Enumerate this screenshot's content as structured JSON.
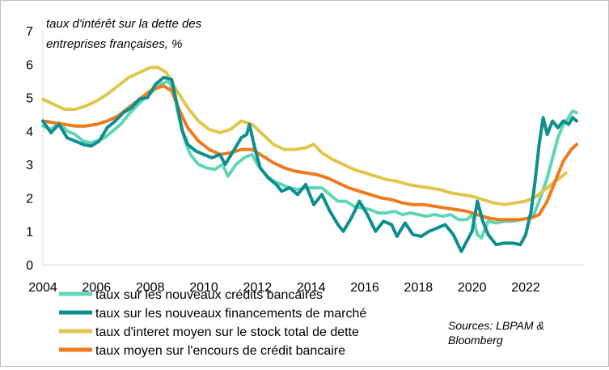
{
  "chart_data": {
    "type": "line",
    "ylabel_lines": [
      "taux d'intérêt sur la dette des",
      "entreprises françaises, %"
    ],
    "xlim": [
      2004,
      2024.2
    ],
    "ylim": [
      0,
      7
    ],
    "x_ticks": [
      2004,
      2006,
      2008,
      2010,
      2012,
      2014,
      2016,
      2018,
      2020,
      2022
    ],
    "y_ticks": [
      0,
      1,
      2,
      3,
      4,
      5,
      6,
      7
    ],
    "grid": false,
    "legend_position": "bottom-left",
    "source_lines": [
      "Sources: LBPAM &",
      "Bloomberg"
    ],
    "series": [
      {
        "name": "taux sur les nouveaux crédits bancaires",
        "color": "#5fd6b6",
        "points": [
          [
            2004.0,
            4.15
          ],
          [
            2004.3,
            4.05
          ],
          [
            2004.6,
            4.25
          ],
          [
            2004.9,
            4.0
          ],
          [
            2005.2,
            3.9
          ],
          [
            2005.5,
            3.7
          ],
          [
            2005.8,
            3.65
          ],
          [
            2006.0,
            3.7
          ],
          [
            2006.3,
            3.8
          ],
          [
            2006.6,
            4.0
          ],
          [
            2006.9,
            4.2
          ],
          [
            2007.2,
            4.5
          ],
          [
            2007.5,
            4.75
          ],
          [
            2007.8,
            5.0
          ],
          [
            2008.1,
            5.2
          ],
          [
            2008.4,
            5.4
          ],
          [
            2008.7,
            5.5
          ],
          [
            2008.9,
            5.1
          ],
          [
            2009.1,
            4.3
          ],
          [
            2009.3,
            3.7
          ],
          [
            2009.5,
            3.3
          ],
          [
            2009.8,
            3.0
          ],
          [
            2010.1,
            2.9
          ],
          [
            2010.4,
            2.85
          ],
          [
            2010.7,
            3.0
          ],
          [
            2010.9,
            2.65
          ],
          [
            2011.2,
            3.0
          ],
          [
            2011.5,
            3.2
          ],
          [
            2011.8,
            3.3
          ],
          [
            2012.0,
            3.0
          ],
          [
            2012.3,
            2.7
          ],
          [
            2012.6,
            2.5
          ],
          [
            2012.9,
            2.4
          ],
          [
            2013.2,
            2.3
          ],
          [
            2013.5,
            2.25
          ],
          [
            2013.8,
            2.3
          ],
          [
            2014.1,
            2.3
          ],
          [
            2014.4,
            2.3
          ],
          [
            2014.7,
            2.1
          ],
          [
            2015.0,
            1.9
          ],
          [
            2015.3,
            1.9
          ],
          [
            2015.6,
            1.75
          ],
          [
            2015.9,
            1.7
          ],
          [
            2016.2,
            1.65
          ],
          [
            2016.5,
            1.55
          ],
          [
            2016.8,
            1.55
          ],
          [
            2017.1,
            1.6
          ],
          [
            2017.4,
            1.5
          ],
          [
            2017.7,
            1.55
          ],
          [
            2018.0,
            1.5
          ],
          [
            2018.3,
            1.45
          ],
          [
            2018.6,
            1.5
          ],
          [
            2018.9,
            1.45
          ],
          [
            2019.2,
            1.5
          ],
          [
            2019.5,
            1.35
          ],
          [
            2019.8,
            1.35
          ],
          [
            2020.0,
            1.5
          ],
          [
            2020.2,
            0.9
          ],
          [
            2020.35,
            0.8
          ],
          [
            2020.6,
            1.3
          ],
          [
            2020.9,
            1.25
          ],
          [
            2021.2,
            1.3
          ],
          [
            2021.5,
            1.3
          ],
          [
            2021.8,
            1.35
          ],
          [
            2022.1,
            1.4
          ],
          [
            2022.3,
            1.5
          ],
          [
            2022.5,
            1.9
          ],
          [
            2022.8,
            2.6
          ],
          [
            2023.0,
            3.2
          ],
          [
            2023.2,
            3.8
          ],
          [
            2023.4,
            4.2
          ],
          [
            2023.6,
            4.4
          ],
          [
            2023.75,
            4.6
          ],
          [
            2023.9,
            4.55
          ]
        ]
      },
      {
        "name": "taux sur les nouveaux financements de marché",
        "color": "#0f8e8e",
        "points": [
          [
            2004.0,
            4.3
          ],
          [
            2004.3,
            3.95
          ],
          [
            2004.6,
            4.2
          ],
          [
            2004.9,
            3.8
          ],
          [
            2005.2,
            3.7
          ],
          [
            2005.5,
            3.6
          ],
          [
            2005.8,
            3.55
          ],
          [
            2006.1,
            3.7
          ],
          [
            2006.4,
            4.1
          ],
          [
            2006.7,
            4.3
          ],
          [
            2007.0,
            4.55
          ],
          [
            2007.3,
            4.7
          ],
          [
            2007.6,
            4.95
          ],
          [
            2007.9,
            5.0
          ],
          [
            2008.2,
            5.4
          ],
          [
            2008.5,
            5.6
          ],
          [
            2008.8,
            5.55
          ],
          [
            2009.0,
            4.8
          ],
          [
            2009.2,
            4.0
          ],
          [
            2009.4,
            3.6
          ],
          [
            2009.7,
            3.4
          ],
          [
            2010.0,
            3.3
          ],
          [
            2010.3,
            3.2
          ],
          [
            2010.6,
            3.3
          ],
          [
            2010.8,
            3.0
          ],
          [
            2011.1,
            3.4
          ],
          [
            2011.4,
            3.8
          ],
          [
            2011.6,
            3.9
          ],
          [
            2011.7,
            4.2
          ],
          [
            2011.9,
            3.5
          ],
          [
            2012.1,
            2.9
          ],
          [
            2012.4,
            2.6
          ],
          [
            2012.7,
            2.4
          ],
          [
            2012.9,
            2.2
          ],
          [
            2013.2,
            2.3
          ],
          [
            2013.5,
            2.1
          ],
          [
            2013.8,
            2.4
          ],
          [
            2014.1,
            1.8
          ],
          [
            2014.4,
            2.1
          ],
          [
            2014.7,
            1.6
          ],
          [
            2015.0,
            1.2
          ],
          [
            2015.2,
            1.0
          ],
          [
            2015.5,
            1.4
          ],
          [
            2015.8,
            1.9
          ],
          [
            2016.1,
            1.5
          ],
          [
            2016.4,
            1.0
          ],
          [
            2016.7,
            1.3
          ],
          [
            2017.0,
            1.2
          ],
          [
            2017.2,
            0.85
          ],
          [
            2017.5,
            1.25
          ],
          [
            2017.8,
            0.9
          ],
          [
            2018.1,
            0.85
          ],
          [
            2018.4,
            1.0
          ],
          [
            2018.7,
            1.1
          ],
          [
            2019.0,
            1.2
          ],
          [
            2019.3,
            0.9
          ],
          [
            2019.6,
            0.4
          ],
          [
            2019.8,
            0.7
          ],
          [
            2020.0,
            1.0
          ],
          [
            2020.2,
            1.9
          ],
          [
            2020.4,
            1.3
          ],
          [
            2020.6,
            0.9
          ],
          [
            2020.9,
            0.6
          ],
          [
            2021.2,
            0.65
          ],
          [
            2021.5,
            0.65
          ],
          [
            2021.8,
            0.6
          ],
          [
            2022.0,
            0.9
          ],
          [
            2022.2,
            1.6
          ],
          [
            2022.35,
            2.5
          ],
          [
            2022.5,
            3.6
          ],
          [
            2022.65,
            4.4
          ],
          [
            2022.8,
            3.9
          ],
          [
            2023.0,
            4.3
          ],
          [
            2023.2,
            4.1
          ],
          [
            2023.4,
            4.3
          ],
          [
            2023.6,
            4.2
          ],
          [
            2023.75,
            4.4
          ],
          [
            2023.9,
            4.3
          ]
        ]
      },
      {
        "name": "taux d'interet moyen sur le stock total de dette",
        "color": "#e2c54b",
        "points": [
          [
            2004.0,
            4.95
          ],
          [
            2004.4,
            4.8
          ],
          [
            2004.8,
            4.65
          ],
          [
            2005.2,
            4.65
          ],
          [
            2005.6,
            4.75
          ],
          [
            2006.0,
            4.9
          ],
          [
            2006.4,
            5.1
          ],
          [
            2006.8,
            5.35
          ],
          [
            2007.2,
            5.6
          ],
          [
            2007.6,
            5.75
          ],
          [
            2008.0,
            5.9
          ],
          [
            2008.3,
            5.9
          ],
          [
            2008.6,
            5.75
          ],
          [
            2009.0,
            5.2
          ],
          [
            2009.4,
            4.7
          ],
          [
            2009.8,
            4.3
          ],
          [
            2010.2,
            4.05
          ],
          [
            2010.6,
            3.95
          ],
          [
            2011.0,
            4.05
          ],
          [
            2011.4,
            4.3
          ],
          [
            2011.8,
            4.2
          ],
          [
            2012.2,
            3.9
          ],
          [
            2012.6,
            3.6
          ],
          [
            2013.0,
            3.45
          ],
          [
            2013.4,
            3.45
          ],
          [
            2013.8,
            3.5
          ],
          [
            2014.1,
            3.6
          ],
          [
            2014.4,
            3.35
          ],
          [
            2014.8,
            3.15
          ],
          [
            2015.2,
            3.0
          ],
          [
            2015.6,
            2.85
          ],
          [
            2016.0,
            2.75
          ],
          [
            2016.4,
            2.65
          ],
          [
            2016.8,
            2.55
          ],
          [
            2017.2,
            2.5
          ],
          [
            2017.6,
            2.4
          ],
          [
            2018.0,
            2.35
          ],
          [
            2018.4,
            2.3
          ],
          [
            2018.8,
            2.25
          ],
          [
            2019.2,
            2.15
          ],
          [
            2019.6,
            2.1
          ],
          [
            2020.0,
            2.05
          ],
          [
            2020.4,
            1.95
          ],
          [
            2020.8,
            1.85
          ],
          [
            2021.2,
            1.8
          ],
          [
            2021.6,
            1.85
          ],
          [
            2022.0,
            1.9
          ],
          [
            2022.4,
            2.05
          ],
          [
            2022.8,
            2.3
          ],
          [
            2023.2,
            2.55
          ],
          [
            2023.5,
            2.75
          ]
        ]
      },
      {
        "name": "taux moyen sur l'encours de crédit bancaire",
        "color": "#f07a1e",
        "points": [
          [
            2004.0,
            4.3
          ],
          [
            2004.4,
            4.25
          ],
          [
            2004.8,
            4.2
          ],
          [
            2005.2,
            4.15
          ],
          [
            2005.6,
            4.15
          ],
          [
            2006.0,
            4.2
          ],
          [
            2006.4,
            4.3
          ],
          [
            2006.8,
            4.45
          ],
          [
            2007.2,
            4.7
          ],
          [
            2007.6,
            4.95
          ],
          [
            2008.0,
            5.2
          ],
          [
            2008.3,
            5.3
          ],
          [
            2008.5,
            5.35
          ],
          [
            2008.8,
            5.2
          ],
          [
            2009.1,
            4.6
          ],
          [
            2009.4,
            4.1
          ],
          [
            2009.8,
            3.7
          ],
          [
            2010.2,
            3.45
          ],
          [
            2010.6,
            3.3
          ],
          [
            2011.0,
            3.35
          ],
          [
            2011.4,
            3.45
          ],
          [
            2011.8,
            3.45
          ],
          [
            2012.2,
            3.25
          ],
          [
            2012.6,
            3.05
          ],
          [
            2013.0,
            2.9
          ],
          [
            2013.4,
            2.8
          ],
          [
            2013.8,
            2.75
          ],
          [
            2014.2,
            2.7
          ],
          [
            2014.6,
            2.6
          ],
          [
            2015.0,
            2.45
          ],
          [
            2015.4,
            2.3
          ],
          [
            2015.8,
            2.2
          ],
          [
            2016.2,
            2.1
          ],
          [
            2016.6,
            2.0
          ],
          [
            2017.0,
            1.95
          ],
          [
            2017.4,
            1.85
          ],
          [
            2017.8,
            1.8
          ],
          [
            2018.2,
            1.8
          ],
          [
            2018.6,
            1.75
          ],
          [
            2019.0,
            1.7
          ],
          [
            2019.4,
            1.65
          ],
          [
            2019.8,
            1.6
          ],
          [
            2020.2,
            1.5
          ],
          [
            2020.6,
            1.4
          ],
          [
            2021.0,
            1.35
          ],
          [
            2021.4,
            1.35
          ],
          [
            2021.8,
            1.35
          ],
          [
            2022.2,
            1.4
          ],
          [
            2022.5,
            1.5
          ],
          [
            2022.8,
            1.9
          ],
          [
            2023.1,
            2.5
          ],
          [
            2023.4,
            3.1
          ],
          [
            2023.7,
            3.45
          ],
          [
            2023.9,
            3.6
          ]
        ]
      }
    ]
  }
}
